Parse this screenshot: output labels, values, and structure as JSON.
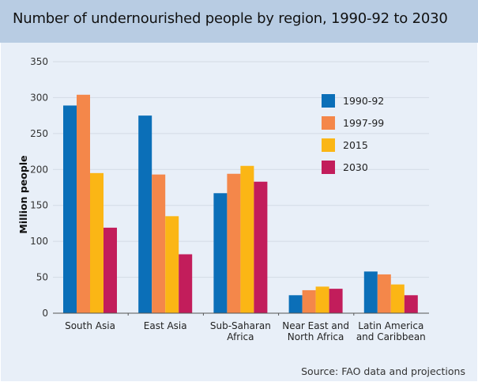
{
  "header": {
    "title": "Number of undernourished people by region, 1990-92 to 2030"
  },
  "footer": {
    "source": "Source: FAO data and projections"
  },
  "chart_data": {
    "type": "bar",
    "title": "Number of undernourished people by region, 1990-92 to 2030",
    "xlabel": "",
    "ylabel": "Million people",
    "ylim": [
      0,
      350
    ],
    "yticks": [
      0,
      50,
      100,
      150,
      200,
      250,
      300,
      350
    ],
    "grid": true,
    "legend_position": "top-right",
    "categories": [
      [
        "South Asia"
      ],
      [
        "East Asia"
      ],
      [
        "Sub-Saharan",
        "Africa"
      ],
      [
        "Near East and",
        "North Africa"
      ],
      [
        "Latin America",
        "and Caribbean"
      ]
    ],
    "series": [
      {
        "name": "1990-92",
        "color": "#0b6fb8",
        "values": [
          289,
          275,
          167,
          25,
          58
        ]
      },
      {
        "name": "1997-99",
        "color": "#f4874a",
        "values": [
          304,
          193,
          194,
          32,
          54
        ]
      },
      {
        "name": "2015",
        "color": "#fbb615",
        "values": [
          195,
          135,
          205,
          37,
          40
        ]
      },
      {
        "name": "2030",
        "color": "#c21d5b",
        "values": [
          119,
          82,
          183,
          34,
          25
        ]
      }
    ]
  }
}
